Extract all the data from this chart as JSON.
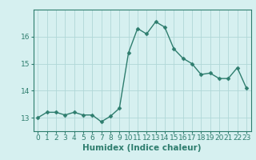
{
  "x": [
    0,
    1,
    2,
    3,
    4,
    5,
    6,
    7,
    8,
    9,
    10,
    11,
    12,
    13,
    14,
    15,
    16,
    17,
    18,
    19,
    20,
    21,
    22,
    23
  ],
  "y": [
    13.0,
    13.2,
    13.2,
    13.1,
    13.2,
    13.1,
    13.1,
    12.85,
    13.05,
    13.35,
    15.4,
    16.3,
    16.1,
    16.55,
    16.35,
    15.55,
    15.2,
    15.0,
    14.6,
    14.65,
    14.45,
    14.45,
    14.85,
    14.1
  ],
  "xlabel": "Humidex (Indice chaleur)",
  "ylim": [
    12.5,
    17.0
  ],
  "xlim": [
    -0.5,
    23.5
  ],
  "yticks": [
    13,
    14,
    15,
    16
  ],
  "xticks": [
    0,
    1,
    2,
    3,
    4,
    5,
    6,
    7,
    8,
    9,
    10,
    11,
    12,
    13,
    14,
    15,
    16,
    17,
    18,
    19,
    20,
    21,
    22,
    23
  ],
  "line_color": "#2e7d6e",
  "marker_color": "#2e7d6e",
  "bg_color": "#d6f0f0",
  "grid_color": "#b0d8d8",
  "xlabel_fontsize": 7.5,
  "tick_fontsize": 6.5,
  "line_width": 1.0,
  "marker_size": 2.5
}
